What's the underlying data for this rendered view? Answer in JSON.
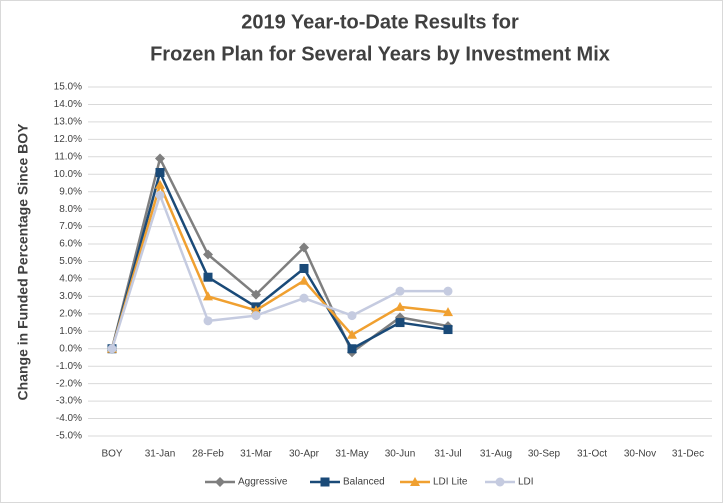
{
  "chart_data": {
    "type": "line",
    "title": [
      "2019 Year-to-Date Results for",
      "Frozen Plan for Several Years by Investment Mix"
    ],
    "ylabel": "Change in Funded Percentage Since BOY",
    "categories": [
      "BOY",
      "31-Jan",
      "28-Feb",
      "31-Mar",
      "30-Apr",
      "31-May",
      "30-Jun",
      "31-Jul",
      "31-Aug",
      "30-Sep",
      "31-Oct",
      "30-Nov",
      "31-Dec"
    ],
    "series": [
      {
        "name": "Aggressive",
        "color": "#7f7f7f",
        "marker": "diamond",
        "values": [
          0,
          10.9,
          5.4,
          3.1,
          5.8,
          -0.2,
          1.8,
          1.3,
          null,
          null,
          null,
          null,
          null
        ]
      },
      {
        "name": "Balanced",
        "color": "#1a4a78",
        "marker": "square",
        "values": [
          0,
          10.1,
          4.1,
          2.4,
          4.6,
          0.0,
          1.5,
          1.1,
          null,
          null,
          null,
          null,
          null
        ]
      },
      {
        "name": "LDI Lite",
        "color": "#f0a030",
        "marker": "triangle",
        "values": [
          0,
          9.4,
          3.0,
          2.2,
          3.9,
          0.8,
          2.4,
          2.1,
          null,
          null,
          null,
          null,
          null
        ]
      },
      {
        "name": "LDI",
        "color": "#c5cbe0",
        "marker": "circle",
        "values": [
          0,
          8.8,
          1.6,
          1.9,
          2.9,
          1.9,
          3.3,
          3.3,
          null,
          null,
          null,
          null,
          null
        ]
      }
    ],
    "ylim": [
      -5,
      15
    ],
    "yticks": [
      {
        "value": -5,
        "label": "-5.0%"
      },
      {
        "value": -4,
        "label": "-4.0%"
      },
      {
        "value": -3,
        "label": "-3.0%"
      },
      {
        "value": -2,
        "label": "-2.0%"
      },
      {
        "value": -1,
        "label": "-1.0%"
      },
      {
        "value": 0,
        "label": "0.0%"
      },
      {
        "value": 1,
        "label": "1.0%"
      },
      {
        "value": 2,
        "label": "2.0%"
      },
      {
        "value": 3,
        "label": "3.0%"
      },
      {
        "value": 4,
        "label": "4.0%"
      },
      {
        "value": 5,
        "label": "5.0%"
      },
      {
        "value": 6,
        "label": "6.0%"
      },
      {
        "value": 7,
        "label": "7.0%"
      },
      {
        "value": 8,
        "label": "8.0%"
      },
      {
        "value": 9,
        "label": "9.0%"
      },
      {
        "value": 10,
        "label": "10.0%"
      },
      {
        "value": 11,
        "label": "11.0%"
      },
      {
        "value": 12,
        "label": "12.0%"
      },
      {
        "value": 13,
        "label": "13.0%"
      },
      {
        "value": 14,
        "label": "14.0%"
      },
      {
        "value": 15,
        "label": "15.0%"
      }
    ],
    "grid": true,
    "legend": "bottom"
  }
}
